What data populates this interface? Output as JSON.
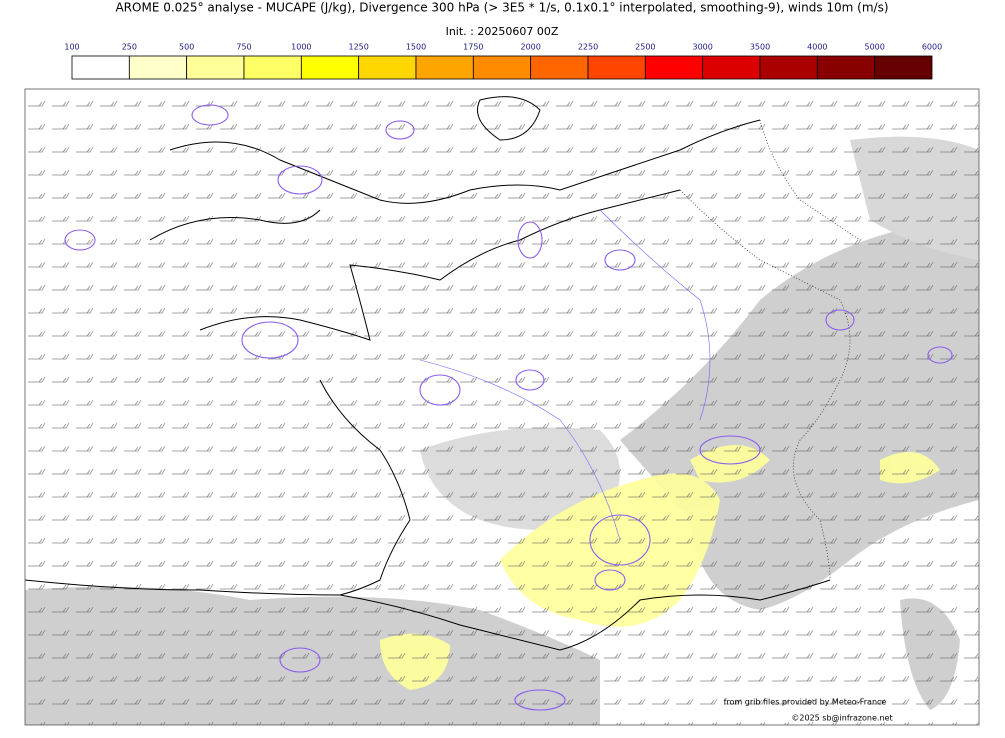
{
  "title": "AROME 0.025° analyse - MUCAPE (J/kg), Divergence 300 hPa (> 3E5 * 1/s, 0.1x0.1° interpolated, smoothing-9), winds 10m (m/s)",
  "init": "Init. : 20250607 00Z",
  "colorbar": {
    "levels": [
      100,
      250,
      500,
      750,
      1000,
      1250,
      1500,
      1750,
      2000,
      2250,
      2500,
      3000,
      3500,
      4000,
      5000,
      6000
    ],
    "colors": [
      "#ffffff",
      "#ffffcc",
      "#ffff99",
      "#ffff66",
      "#ffff00",
      "#ffd700",
      "#ffa500",
      "#ff8c00",
      "#ff6600",
      "#ff4500",
      "#ff0000",
      "#dd0000",
      "#aa0000",
      "#880000",
      "#660000"
    ]
  },
  "credits": [
    "from grib files provided by Meteo-France",
    "©2025 sb@infrazone.net"
  ]
}
